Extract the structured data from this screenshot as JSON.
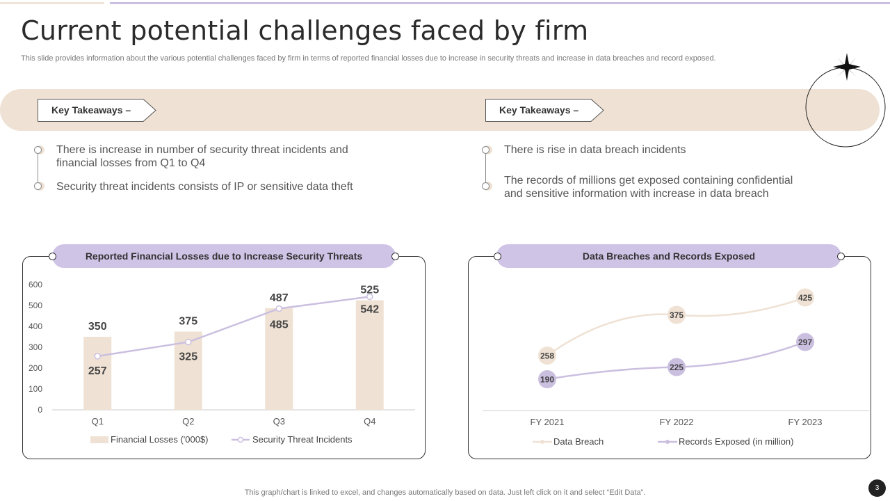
{
  "title": "Current potential challenges faced by firm",
  "subtitle": "This slide provides information about the various potential challenges faced by firm in terms of reported financial losses due to increase in security threats and increase in data breaches and record exposed.",
  "takeaways": [
    {
      "label": "Key Takeaways –",
      "points": [
        "There is increase in number of security threat incidents and financial losses from Q1 to Q4",
        "Security threat incidents consists of IP or sensitive data theft"
      ]
    },
    {
      "label": "Key Takeaways –",
      "points": [
        "There is rise in data breach incidents",
        "The records of millions get exposed containing confidential and sensitive information with increase in data breach"
      ]
    }
  ],
  "chart_data": [
    {
      "type": "bar",
      "title": "Reported Financial Losses due to Increase Security Threats",
      "categories": [
        "Q1",
        "Q2",
        "Q3",
        "Q4"
      ],
      "ylim": [
        0,
        600
      ],
      "yticks": [
        0,
        100,
        200,
        300,
        400,
        500,
        600
      ],
      "series": [
        {
          "name": "Financial Losses  ('000$)",
          "kind": "bar",
          "color": "#efe2d4",
          "values": [
            350,
            375,
            487,
            525
          ]
        },
        {
          "name": "Security Threat Incidents",
          "kind": "line",
          "color": "#cbbfe0",
          "values": [
            257,
            325,
            485,
            542
          ]
        }
      ]
    },
    {
      "type": "line",
      "title": "Data Breaches and Records Exposed",
      "categories": [
        "FY 2021",
        "FY 2022",
        "FY 2023"
      ],
      "series": [
        {
          "name": "Data Breach",
          "color": "#efe2d4",
          "values": [
            258,
            375,
            425
          ]
        },
        {
          "name": "Records Exposed (in million)",
          "color": "#cbbfe0",
          "values": [
            190,
            225,
            297
          ]
        }
      ]
    }
  ],
  "footer": "This graph/chart is linked to excel,  and changes automatically based on data. Just left click on it and select “Edit Data”.",
  "page_number": "3"
}
